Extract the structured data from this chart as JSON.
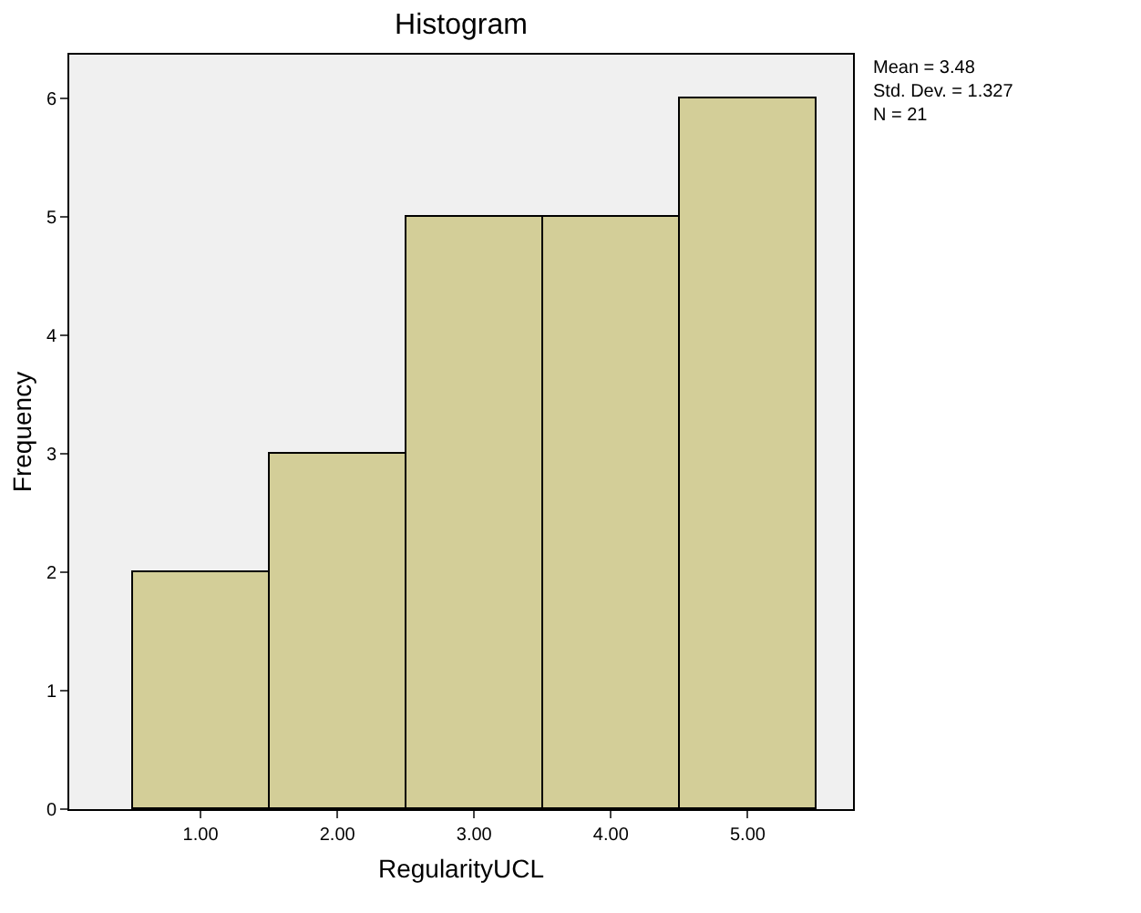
{
  "chart_data": {
    "type": "histogram",
    "title": "Histogram",
    "xlabel": "RegularityUCL",
    "ylabel": "Frequency",
    "bins": [
      0.5,
      1.5,
      2.5,
      3.5,
      4.5,
      5.5
    ],
    "values": [
      2,
      3,
      5,
      5,
      6
    ],
    "color": "#d3ce98",
    "xlim": [
      0.04,
      5.77
    ],
    "xticks": [
      {
        "value": 1,
        "label": "1.00"
      },
      {
        "value": 2,
        "label": "2.00"
      },
      {
        "value": 3,
        "label": "3.00"
      },
      {
        "value": 4,
        "label": "4.00"
      },
      {
        "value": 5,
        "label": "5.00"
      }
    ],
    "ylim": [
      0,
      6.37
    ],
    "yticks": [
      0,
      1,
      2,
      3,
      4,
      5,
      6
    ],
    "grid": false,
    "annotations": [
      "Mean = 3.48\nStd. Dev. = 1.327\nN = 21"
    ]
  }
}
